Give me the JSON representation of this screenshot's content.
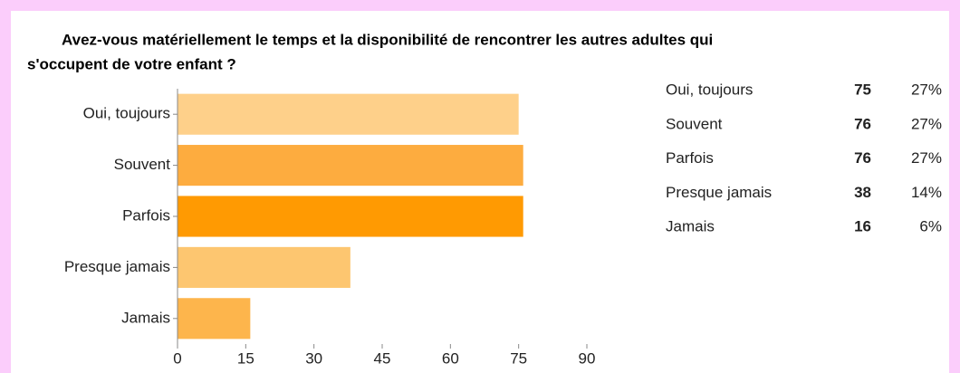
{
  "chart_data": {
    "type": "bar",
    "orientation": "horizontal",
    "title_lines": [
      "Avez-vous matériellement le temps et la disponibilité de rencontrer les autres adultes qui",
      "s'occupent de votre enfant ?"
    ],
    "categories": [
      "Oui, toujours",
      "Souvent",
      "Parfois",
      "Presque jamais",
      "Jamais"
    ],
    "values": [
      75,
      76,
      76,
      38,
      16
    ],
    "percent_labels": [
      "27%",
      "27%",
      "27%",
      "14%",
      "6%"
    ],
    "colors": [
      "#fed08a",
      "#fdac3f",
      "#ff9a02",
      "#fdc670",
      "#fdb54c"
    ],
    "xlim": [
      0,
      90
    ],
    "xticks": [
      0,
      15,
      30,
      45,
      60,
      75,
      90
    ],
    "grid": false
  }
}
